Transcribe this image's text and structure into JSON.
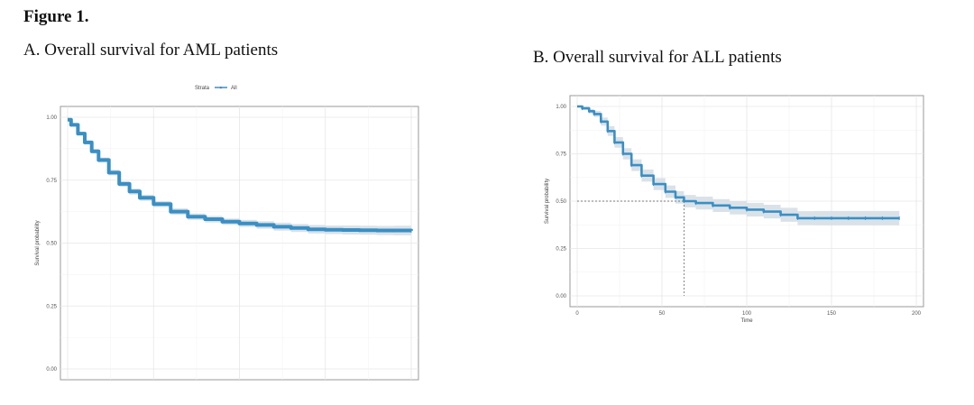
{
  "figure_title": "Figure 1.",
  "panels": {
    "a_title": "A. Overall survival for AML patients",
    "b_title": "B. Overall survival for ALL patients"
  },
  "chart_data": [
    {
      "type": "line",
      "title": "A. Overall survival for AML patients",
      "xlabel": "",
      "ylabel": "Survival probability",
      "ylim": [
        0,
        1
      ],
      "xlim": [
        0,
        100
      ],
      "yticks": [
        "0.00",
        "0.25",
        "0.50",
        "0.75",
        "1.00"
      ],
      "xticks": [],
      "grid": true,
      "legend": {
        "title": "Strata",
        "position": "top",
        "entries": [
          "All"
        ]
      },
      "color": "#3a8fc4",
      "band_color": "#d6dfe6",
      "series": [
        {
          "name": "All",
          "x": [
            0,
            1,
            3,
            5,
            7,
            9,
            12,
            15,
            18,
            21,
            25,
            30,
            35,
            40,
            45,
            50,
            55,
            60,
            65,
            70,
            75,
            80,
            85,
            90,
            95,
            100
          ],
          "y": [
            0.99,
            0.97,
            0.935,
            0.9,
            0.865,
            0.83,
            0.78,
            0.735,
            0.705,
            0.68,
            0.655,
            0.625,
            0.605,
            0.595,
            0.585,
            0.578,
            0.572,
            0.565,
            0.56,
            0.555,
            0.553,
            0.552,
            0.551,
            0.55,
            0.55,
            0.549
          ],
          "ci_halfwidth": [
            0.003,
            0.005,
            0.007,
            0.008,
            0.009,
            0.01,
            0.011,
            0.011,
            0.012,
            0.012,
            0.012,
            0.013,
            0.013,
            0.013,
            0.013,
            0.014,
            0.015,
            0.016,
            0.016,
            0.017,
            0.017,
            0.018,
            0.018,
            0.018,
            0.019,
            0.019
          ]
        }
      ]
    },
    {
      "type": "line",
      "title": "B. Overall survival for ALL patients",
      "xlabel": "Time",
      "ylabel": "Survival probability",
      "ylim": [
        0,
        1
      ],
      "xlim": [
        0,
        200
      ],
      "yticks": [
        "0.00",
        "0.25",
        "0.50",
        "0.75",
        "1.00"
      ],
      "xticks": [
        "0",
        "50",
        "100",
        "150",
        "200"
      ],
      "grid": true,
      "median_survival": {
        "x": 63,
        "y": 0.5
      },
      "color": "#3a8fc4",
      "band_color": "#d6dfe6",
      "series": [
        {
          "name": "",
          "x": [
            0,
            3,
            7,
            10,
            14,
            18,
            22,
            27,
            32,
            38,
            45,
            52,
            58,
            63,
            70,
            80,
            90,
            100,
            110,
            120,
            130,
            140,
            150,
            160,
            170,
            180,
            190
          ],
          "y": [
            1.0,
            0.99,
            0.975,
            0.96,
            0.92,
            0.87,
            0.81,
            0.75,
            0.69,
            0.635,
            0.59,
            0.55,
            0.52,
            0.5,
            0.49,
            0.477,
            0.465,
            0.455,
            0.445,
            0.428,
            0.41,
            0.41,
            0.41,
            0.41,
            0.41,
            0.41,
            0.41
          ],
          "ci_halfwidth": [
            0.0,
            0.008,
            0.012,
            0.016,
            0.022,
            0.026,
            0.028,
            0.03,
            0.031,
            0.032,
            0.032,
            0.033,
            0.033,
            0.033,
            0.034,
            0.034,
            0.035,
            0.036,
            0.036,
            0.037,
            0.037,
            0.038,
            0.038,
            0.038,
            0.038,
            0.038,
            0.038
          ]
        }
      ]
    }
  ]
}
